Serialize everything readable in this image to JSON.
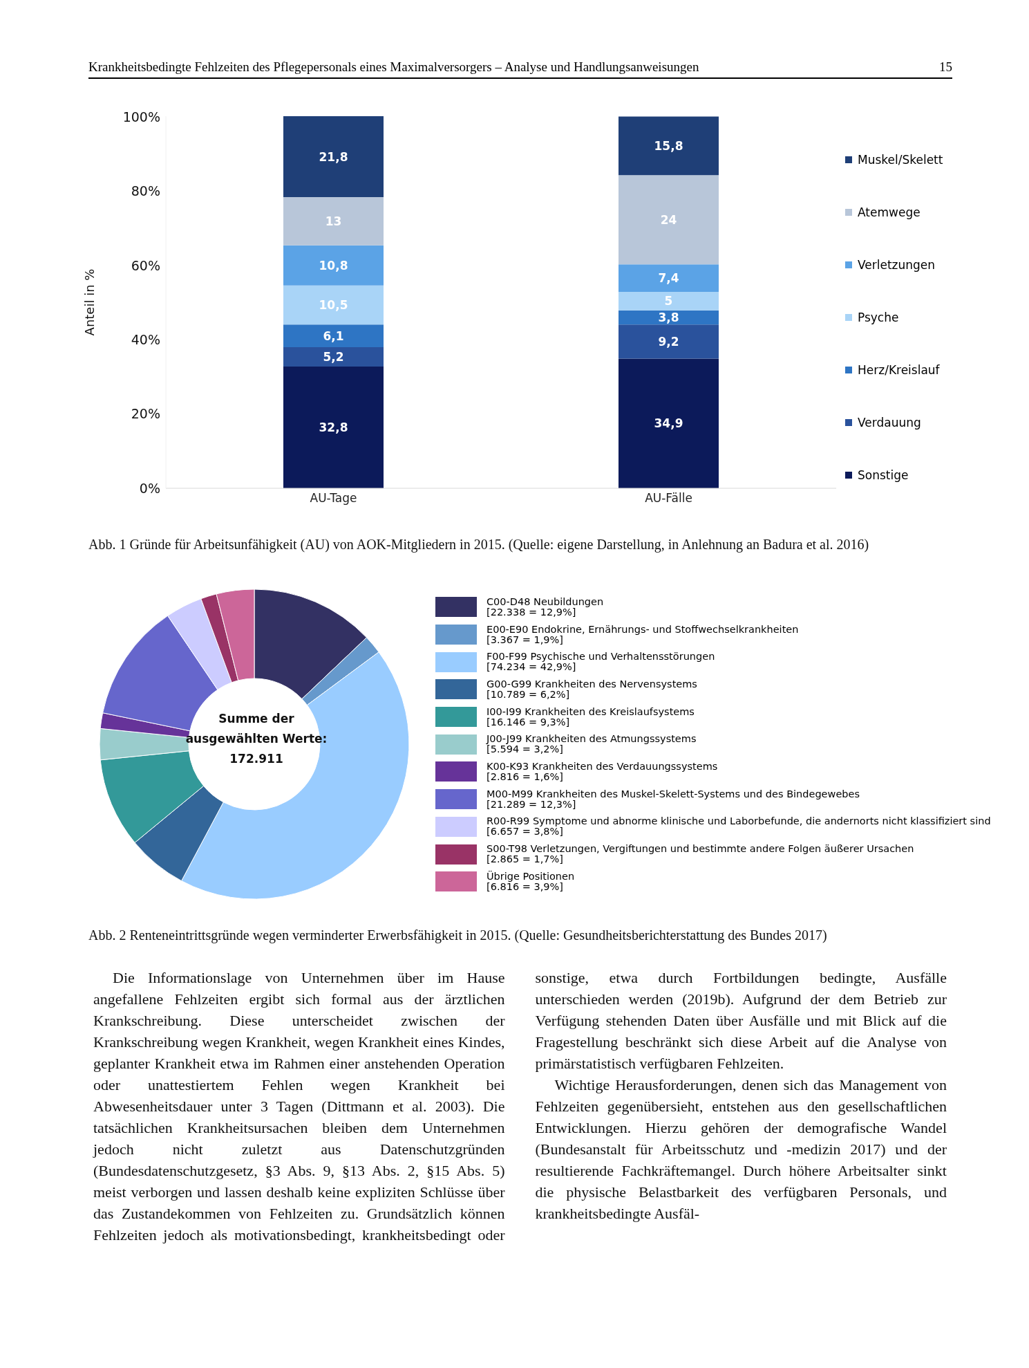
{
  "chart_data": [
    {
      "type": "bar",
      "title": "Abb. 1 Gründe für Arbeitsunfähigkeit (AU) von AOK-Mitgliedern in 2015. (Quelle: eigene Darstellung, in Anlehnung an Badura et al. 2016)",
      "ylabel": "Anteil in %",
      "categories": [
        "AU-Tage",
        "AU-Fälle"
      ],
      "stacked": true,
      "legend": "right",
      "ylim": [
        0,
        100.2
      ],
      "yticks": [
        {
          "value": 0,
          "label": "0%"
        },
        {
          "value": 20,
          "label": "20%"
        },
        {
          "value": 40,
          "label": "40%"
        },
        {
          "value": 60,
          "label": "60%"
        },
        {
          "value": 80,
          "label": "80%"
        },
        {
          "value": 100,
          "label": "100%"
        }
      ],
      "annotations": [
        "Krankheitsbedingte Fehlzeiten des Pflegepersonals eines Maximalversorgers – Analyse und Handlungsanweisungen",
        "15"
      ],
      "series": [
        {
          "name": "Sonstige",
          "color": "#0c1a5a",
          "values": [
            32.8,
            34.9
          ],
          "value_labels": [
            "32,8",
            "34,9"
          ]
        },
        {
          "name": "Verdauung",
          "color": "#2a529c",
          "values": [
            5.2,
            9.2
          ],
          "value_labels": [
            "5,2",
            "9,2"
          ]
        },
        {
          "name": "Herz/Kreislauf",
          "color": "#2e75c4",
          "values": [
            6.1,
            3.8
          ],
          "value_labels": [
            "6,1",
            "3,8"
          ]
        },
        {
          "name": "Psyche",
          "color": "#a9d4f7",
          "values": [
            10.5,
            5
          ],
          "value_labels": [
            "10,5",
            "5"
          ]
        },
        {
          "name": "Verletzungen",
          "color": "#5ba3e6",
          "values": [
            10.8,
            7.4
          ],
          "value_labels": [
            "10,8",
            "7,4"
          ]
        },
        {
          "name": "Atemwege",
          "color": "#b8c6d9",
          "values": [
            13,
            24
          ],
          "value_labels": [
            "13",
            "24"
          ]
        },
        {
          "name": "Muskel/Skelett",
          "color": "#1f3f77",
          "values": [
            21.8,
            15.8
          ],
          "value_labels": [
            "21,8",
            "15,8"
          ]
        }
      ]
    },
    {
      "type": "donut",
      "title": "Abb. 2 Renteneintrittsgründe wegen verminderter Erwerbsfähigkeit in 2015. (Quelle: Gesundheitsberichterstattung des Bundes 2017)",
      "legend": "right",
      "categories": [
        "C00-D48 Neubildungen",
        "E00-E90 Endokrine, Ernährungs- und Stoffwechselkrankheiten",
        "F00-F99 Psychische und Verhaltensstörungen",
        "G00-G99 Krankheiten des Nervensystems",
        "I00-I99 Krankheiten des Kreislaufsystems",
        "J00-J99 Krankheiten des Atmungssystems",
        "K00-K93 Krankheiten des Verdauungssystems",
        "M00-M99 Krankheiten des Muskel-Skelett-Systems und des Bindegewebes",
        "R00-R99 Symptome und abnorme klinische und Laborbefunde, die andernorts nicht klassifiziert sind",
        "S00-T98 Verletzungen, Vergiftungen und bestimmte andere Folgen äußerer Ursachen",
        "Übrige Positionen"
      ],
      "values": [
        22338,
        3367,
        74234,
        10789,
        16146,
        5594,
        2816,
        21289,
        6657,
        2865,
        6816
      ],
      "value_labels": [
        "[22.338 = 12,9%]",
        "[3.367 = 1,9%]",
        "[74.234 = 42,9%]",
        "[10.789 = 6,2%]",
        "[16.146 = 9,3%]",
        "[5.594 = 3,2%]",
        "[2.816 = 1,6%]",
        "[21.289 = 12,3%]",
        "[6.657 = 3,8%]",
        "[2.865 = 1,7%]",
        "[6.816 = 3,9%]"
      ],
      "colors": [
        "#333163",
        "#6699cc",
        "#99ccff",
        "#336699",
        "#339999",
        "#99cccc",
        "#663399",
        "#6666cc",
        "#ccccff",
        "#993366",
        "#cc6699"
      ],
      "annotations": [
        "Summe der ausgewählten Werte: 172.911",
        "Die Informationslage von Unternehmen über im Hause angefallene Fehlzeiten ergibt sich formal aus der ärztlichen Krankschreibung. Diese unterscheidet zwischen der Krankschreibung wegen Krankheit, wegen Krankheit eines Kindes, geplanter Krankheit etwa im Rahmen einer anstehenden Operation oder unattestiertem Fehlen wegen Krankheit bei Abwesenheitsdauer unter 3 Tagen (Dittmann et al. 2003). Die tatsächlichen Krankheitsursachen bleiben dem Unternehmen jedoch nicht zuletzt aus Datenschutzgründen (Bundesdatenschutzgesetz, §3 Abs. 9, §13 Abs. 2, §15 Abs. 5) meist verborgen und lassen deshalb keine expliziten Schlüsse über das Zustandekommen von Fehlzeiten zu. Grundsätzlich können Fehlzeiten jedoch als motivationsbedingt, krankheitsbedingt oder sonstige, etwa durch Fortbildungen bedingte, Ausfälle unterschieden werden (2019b). Aufgrund der dem Betrieb zur Verfügung stehenden Daten über Ausfälle und mit Blick auf die Fragestellung beschränkt sich diese Arbeit auf die Analyse von primärstatistisch verfügbaren Fehlzeiten.",
        "Wichtige Herausforderungen, denen sich das Management von Fehlzeiten gegenübersieht, entstehen aus den gesellschaftlichen Entwicklungen. Hierzu gehören der demografische Wandel (Bundesanstalt für Arbeitsschutz und -medizin 2017) und der resultierende Fachkräftemangel. Durch höhere Arbeitsalter sinkt die physische Belastbarkeit des verfügbaren Personals, und krankheitsbedingte Ausfäl-"
      ]
    }
  ]
}
